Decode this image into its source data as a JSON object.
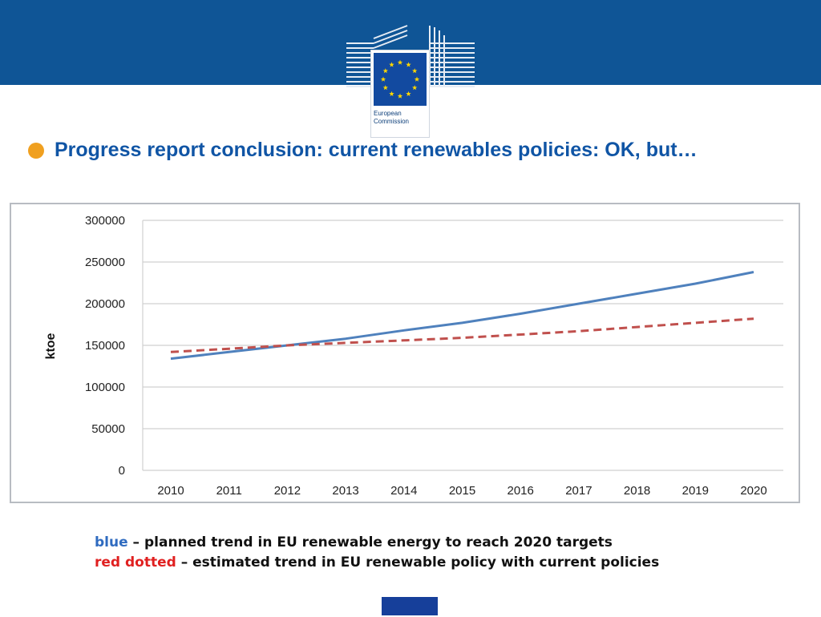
{
  "header": {
    "logo_text": "European\nCommission",
    "colors": {
      "band": "#0f5596",
      "flag": "#124aa0",
      "star": "#ffd700"
    }
  },
  "headline": {
    "text": "Progress report conclusion: current renewables policies: OK, but…",
    "bullet_color": "#f0a020"
  },
  "notes": {
    "line1_key": "blue",
    "line1_text": " – planned trend in EU renewable energy to reach 2020 targets",
    "line2_key": "red dotted",
    "line2_text": " – estimated trend in EU renewable policy with current policies"
  },
  "chart_data": {
    "type": "line",
    "ylabel": "ktoe",
    "xlabel": "",
    "x": [
      2010,
      2011,
      2012,
      2013,
      2014,
      2015,
      2016,
      2017,
      2018,
      2019,
      2020
    ],
    "ylim": [
      0,
      300000
    ],
    "yticks": [
      0,
      50000,
      100000,
      150000,
      200000,
      250000,
      300000
    ],
    "grid": true,
    "series": [
      {
        "color": "#4f81bd",
        "style": "solid",
        "values": [
          134000,
          142000,
          150000,
          158000,
          168000,
          177000,
          188000,
          200000,
          212000,
          224000,
          238000
        ]
      },
      {
        "color": "#c0504d",
        "style": "dashed",
        "values": [
          142000,
          146000,
          150000,
          153000,
          156000,
          159000,
          163000,
          167000,
          172000,
          177000,
          182000
        ]
      }
    ]
  }
}
